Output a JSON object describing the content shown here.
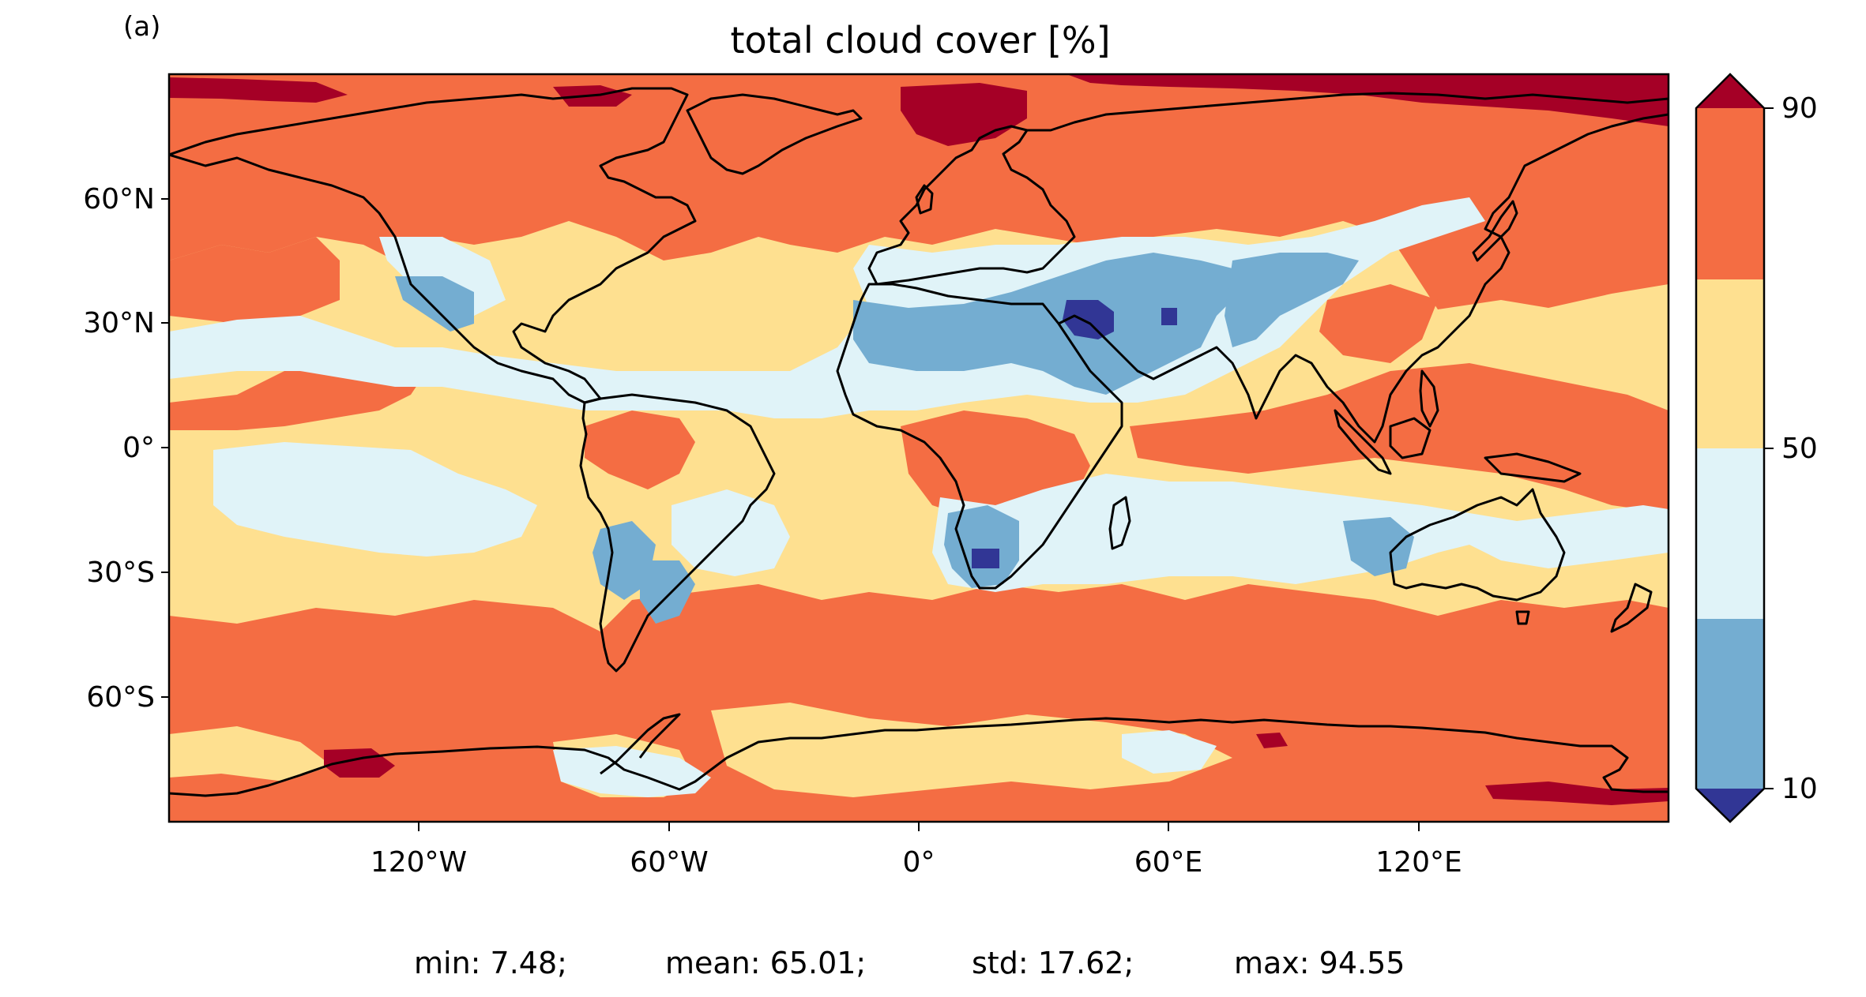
{
  "panel_label": "(a)",
  "title": "total cloud cover [%]",
  "map": {
    "projection": "PlateCarree",
    "lon_range": [
      -180,
      180
    ],
    "lat_range": [
      -90,
      90
    ],
    "lat_ticks": [
      "60°N",
      "30°N",
      "0°",
      "30°S",
      "60°S"
    ],
    "lon_ticks": [
      "120°W",
      "60°W",
      "0°",
      "60°E",
      "120°E"
    ],
    "coastlines": true
  },
  "colorbar": {
    "tick_labels": [
      "90",
      "50",
      "10"
    ],
    "levels": [
      10,
      30,
      50,
      70,
      90
    ],
    "extend": "both",
    "colors": {
      "below_10": "#313695",
      "10_30": "#74add1",
      "30_50": "#e0f3f8",
      "50_70": "#fee090",
      "70_90": "#f46d43",
      "above_90": "#a50026"
    }
  },
  "stats": {
    "min": "min: 7.48;",
    "mean": "mean: 65.01;",
    "std": "std: 17.62;",
    "max": "max: 94.55"
  }
}
